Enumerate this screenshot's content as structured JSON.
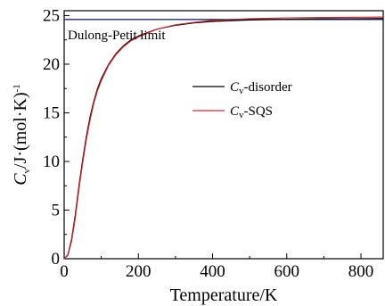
{
  "chart_data": {
    "type": "line",
    "title": "",
    "xlabel": "Temperature/K",
    "ylabel": {
      "main": "C",
      "sub": "v",
      "rest": "/J·(mol·K)",
      "sup": "-1"
    },
    "xlim": [
      0,
      860
    ],
    "ylim": [
      0,
      25.5
    ],
    "xticks": [
      0,
      200,
      400,
      600,
      800
    ],
    "yticks": [
      0,
      5,
      10,
      15,
      20,
      25
    ],
    "grid": false,
    "legend_position": "center-right",
    "annotation": "Dulong-Petit limit",
    "reference_line": {
      "y": 24.6,
      "color": "#1f2a8c"
    },
    "series": [
      {
        "name": "C_v-disorder",
        "label_main": "C",
        "label_sub": "v",
        "label_rest": "-disorder",
        "color": "#000000",
        "x": [
          0,
          10,
          20,
          30,
          40,
          50,
          60,
          70,
          80,
          90,
          100,
          120,
          140,
          160,
          180,
          200,
          250,
          300,
          350,
          400,
          500,
          600,
          700,
          800,
          860
        ],
        "y": [
          0,
          0.4,
          2.0,
          4.5,
          7.5,
          10.2,
          12.6,
          14.6,
          16.2,
          17.5,
          18.5,
          20.0,
          21.1,
          21.9,
          22.5,
          22.9,
          23.6,
          24.0,
          24.25,
          24.4,
          24.55,
          24.62,
          24.66,
          24.68,
          24.7
        ]
      },
      {
        "name": "C_v-SQS",
        "label_main": "C",
        "label_sub": "v",
        "label_rest": "-SQS",
        "color": "#d62728",
        "x": [
          0,
          10,
          20,
          30,
          40,
          50,
          60,
          70,
          80,
          90,
          100,
          120,
          140,
          160,
          180,
          200,
          250,
          300,
          350,
          400,
          500,
          600,
          700,
          800,
          860
        ],
        "y": [
          0,
          0.35,
          1.8,
          4.2,
          7.2,
          9.9,
          12.3,
          14.3,
          16.0,
          17.3,
          18.3,
          19.9,
          21.0,
          21.8,
          22.4,
          22.8,
          23.6,
          24.05,
          24.3,
          24.5,
          24.68,
          24.76,
          24.8,
          24.83,
          24.85
        ]
      }
    ]
  }
}
